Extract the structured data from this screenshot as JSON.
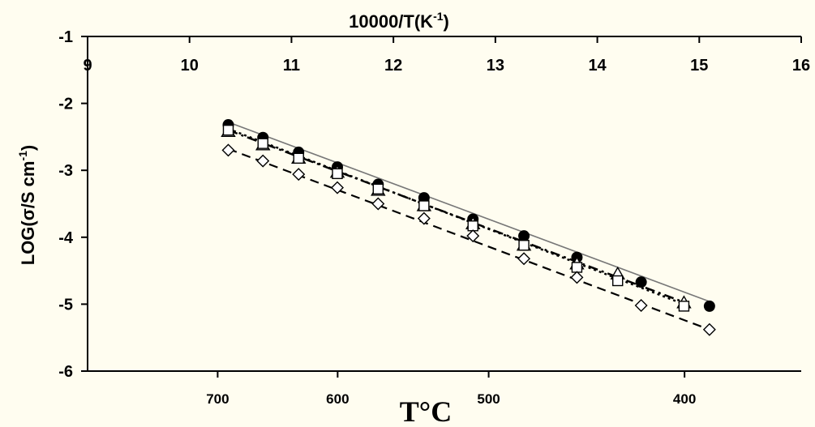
{
  "chart_data": {
    "type": "scatter",
    "title": "",
    "top_xlabel": "10000/T(K",
    "top_xlabel_sup": "-1",
    "top_xlabel_close": ")",
    "ylabel": "LOG(σ/S cm",
    "ylabel_sup": "-1",
    "ylabel_close": ")",
    "bottom_xlabel": "T°C",
    "xlim": [
      9,
      16
    ],
    "ylim": [
      -6,
      -1
    ],
    "x_ticks": [
      "9",
      "10",
      "11",
      "12",
      "13",
      "14",
      "15",
      "16"
    ],
    "y_ticks": [
      "-1",
      "-2",
      "-3",
      "-4",
      "-5",
      "-6"
    ],
    "bottom_ticks": [
      "700",
      "600",
      "500",
      "400"
    ],
    "bottom_tick_celsius": [
      700,
      600,
      500,
      400
    ],
    "grid": false,
    "series": [
      {
        "marker": "filled-circle",
        "line": "solid-thin",
        "points": [
          [
            10.38,
            -2.32
          ],
          [
            10.72,
            -2.51
          ],
          [
            11.07,
            -2.73
          ],
          [
            11.45,
            -2.95
          ],
          [
            11.85,
            -3.21
          ],
          [
            12.3,
            -3.41
          ],
          [
            12.78,
            -3.73
          ],
          [
            13.28,
            -3.98
          ],
          [
            13.8,
            -4.3
          ],
          [
            14.43,
            -4.67
          ],
          [
            15.1,
            -5.03
          ]
        ]
      },
      {
        "marker": "open-triangle",
        "line": "dash-dot",
        "points": [
          [
            10.38,
            -2.42
          ],
          [
            10.72,
            -2.62
          ],
          [
            11.07,
            -2.82
          ],
          [
            11.45,
            -3.03
          ],
          [
            11.85,
            -3.3
          ],
          [
            12.3,
            -3.53
          ],
          [
            12.78,
            -3.8
          ],
          [
            13.28,
            -4.12
          ],
          [
            13.8,
            -4.4
          ],
          [
            14.2,
            -4.55
          ],
          [
            14.85,
            -4.98
          ]
        ]
      },
      {
        "marker": "open-square",
        "line": "dotted",
        "points": [
          [
            10.38,
            -2.4
          ],
          [
            10.72,
            -2.6
          ],
          [
            11.07,
            -2.82
          ],
          [
            11.45,
            -3.05
          ],
          [
            11.85,
            -3.28
          ],
          [
            12.3,
            -3.53
          ],
          [
            12.78,
            -3.83
          ],
          [
            13.28,
            -4.12
          ],
          [
            13.8,
            -4.45
          ],
          [
            14.2,
            -4.65
          ],
          [
            14.85,
            -5.03
          ]
        ]
      },
      {
        "marker": "open-diamond",
        "line": "dashed",
        "points": [
          [
            10.38,
            -2.7
          ],
          [
            10.72,
            -2.86
          ],
          [
            11.07,
            -3.06
          ],
          [
            11.45,
            -3.26
          ],
          [
            11.85,
            -3.5
          ],
          [
            12.3,
            -3.72
          ],
          [
            12.78,
            -3.98
          ],
          [
            13.28,
            -4.32
          ],
          [
            13.8,
            -4.6
          ],
          [
            14.43,
            -5.02
          ],
          [
            15.1,
            -5.38
          ]
        ]
      }
    ],
    "fit_lines": [
      {
        "style": "solid-thin",
        "from": [
          10.38,
          -2.28
        ],
        "to": [
          15.1,
          -4.96
        ]
      },
      {
        "style": "dash-dot",
        "from": [
          10.38,
          -2.4
        ],
        "to": [
          14.9,
          -5.0
        ]
      },
      {
        "style": "dotted",
        "from": [
          10.38,
          -2.38
        ],
        "to": [
          14.9,
          -5.03
        ]
      },
      {
        "style": "dashed",
        "from": [
          10.38,
          -2.68
        ],
        "to": [
          15.1,
          -5.38
        ]
      }
    ]
  }
}
